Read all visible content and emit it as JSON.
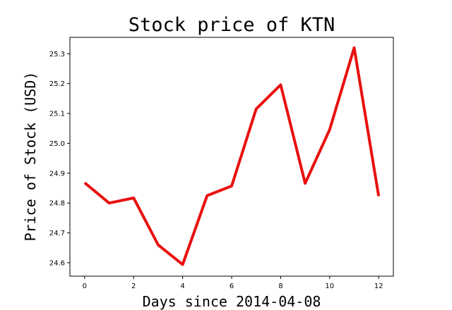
{
  "chart_data": {
    "type": "line",
    "title": "Stock price of KTN",
    "xlabel": "Days since 2014-04-08",
    "ylabel": "Price of Stock (USD)",
    "x": [
      0,
      1,
      2,
      3,
      4,
      5,
      6,
      7,
      8,
      9,
      10,
      11,
      12
    ],
    "series": [
      {
        "values": [
          24.868,
          24.8,
          24.817,
          24.66,
          24.594,
          24.825,
          24.857,
          25.115,
          25.196,
          24.866,
          25.046,
          25.32,
          24.823
        ],
        "color": "#e8110f"
      }
    ],
    "xlim": [
      -0.6,
      12.6
    ],
    "ylim": [
      24.555,
      25.355
    ],
    "xticks": [
      0,
      2,
      4,
      6,
      8,
      10,
      12
    ],
    "xtick_labels": [
      "0",
      "2",
      "4",
      "6",
      "8",
      "10",
      "12"
    ],
    "yticks": [
      24.6,
      24.7,
      24.8,
      24.9,
      25.0,
      25.1,
      25.2,
      25.3
    ],
    "ytick_labels": [
      "24.6",
      "24.7",
      "24.8",
      "24.9",
      "25.0",
      "25.1",
      "25.2",
      "25.3"
    ],
    "grid": false,
    "legend": "none"
  }
}
